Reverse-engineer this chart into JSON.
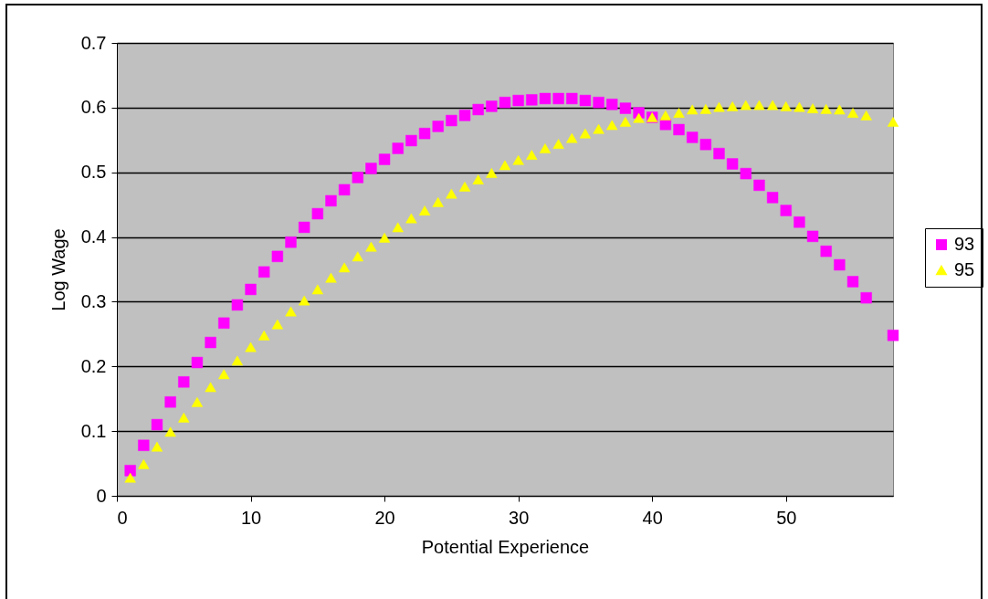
{
  "chart_data": {
    "type": "scatter",
    "xlabel": "Potential Experience",
    "ylabel": "Log Wage",
    "xlim": [
      0,
      58
    ],
    "xticks": [
      0,
      10,
      20,
      30,
      40,
      50
    ],
    "ylim": [
      0,
      0.7
    ],
    "yticks": [
      0,
      0.1,
      0.2,
      0.3,
      0.4,
      0.5,
      0.6,
      0.7
    ],
    "grid": "y",
    "legend": "right",
    "x": [
      1,
      2,
      3,
      4,
      5,
      6,
      7,
      8,
      9,
      10,
      11,
      12,
      13,
      14,
      15,
      16,
      17,
      18,
      19,
      20,
      21,
      22,
      23,
      24,
      25,
      26,
      27,
      28,
      29,
      30,
      31,
      32,
      33,
      34,
      35,
      36,
      37,
      38,
      39,
      40,
      41,
      42,
      43,
      44,
      45,
      46,
      47,
      48,
      49,
      50,
      51,
      52,
      53,
      54,
      55,
      56,
      58
    ],
    "series": [
      {
        "name": "93",
        "color": "#ff00ff",
        "marker": "square",
        "values": [
          0.039,
          0.078,
          0.11,
          0.145,
          0.176,
          0.206,
          0.237,
          0.267,
          0.295,
          0.319,
          0.346,
          0.37,
          0.392,
          0.415,
          0.436,
          0.456,
          0.473,
          0.492,
          0.506,
          0.52,
          0.537,
          0.549,
          0.56,
          0.571,
          0.58,
          0.588,
          0.597,
          0.602,
          0.608,
          0.611,
          0.612,
          0.614,
          0.614,
          0.614,
          0.611,
          0.608,
          0.605,
          0.599,
          0.592,
          0.585,
          0.574,
          0.566,
          0.554,
          0.543,
          0.529,
          0.513,
          0.498,
          0.48,
          0.461,
          0.441,
          0.423,
          0.401,
          0.378,
          0.357,
          0.331,
          0.306,
          0.248
        ]
      },
      {
        "name": "95",
        "color": "#ffff00",
        "marker": "triangle",
        "values": [
          0.028,
          0.049,
          0.076,
          0.099,
          0.121,
          0.145,
          0.168,
          0.188,
          0.209,
          0.23,
          0.248,
          0.265,
          0.285,
          0.302,
          0.319,
          0.337,
          0.353,
          0.37,
          0.385,
          0.399,
          0.415,
          0.429,
          0.441,
          0.454,
          0.467,
          0.478,
          0.489,
          0.499,
          0.511,
          0.519,
          0.527,
          0.537,
          0.544,
          0.553,
          0.56,
          0.567,
          0.573,
          0.578,
          0.584,
          0.585,
          0.588,
          0.592,
          0.597,
          0.598,
          0.601,
          0.602,
          0.604,
          0.604,
          0.604,
          0.602,
          0.601,
          0.599,
          0.598,
          0.597,
          0.592,
          0.588,
          0.578
        ]
      }
    ]
  }
}
